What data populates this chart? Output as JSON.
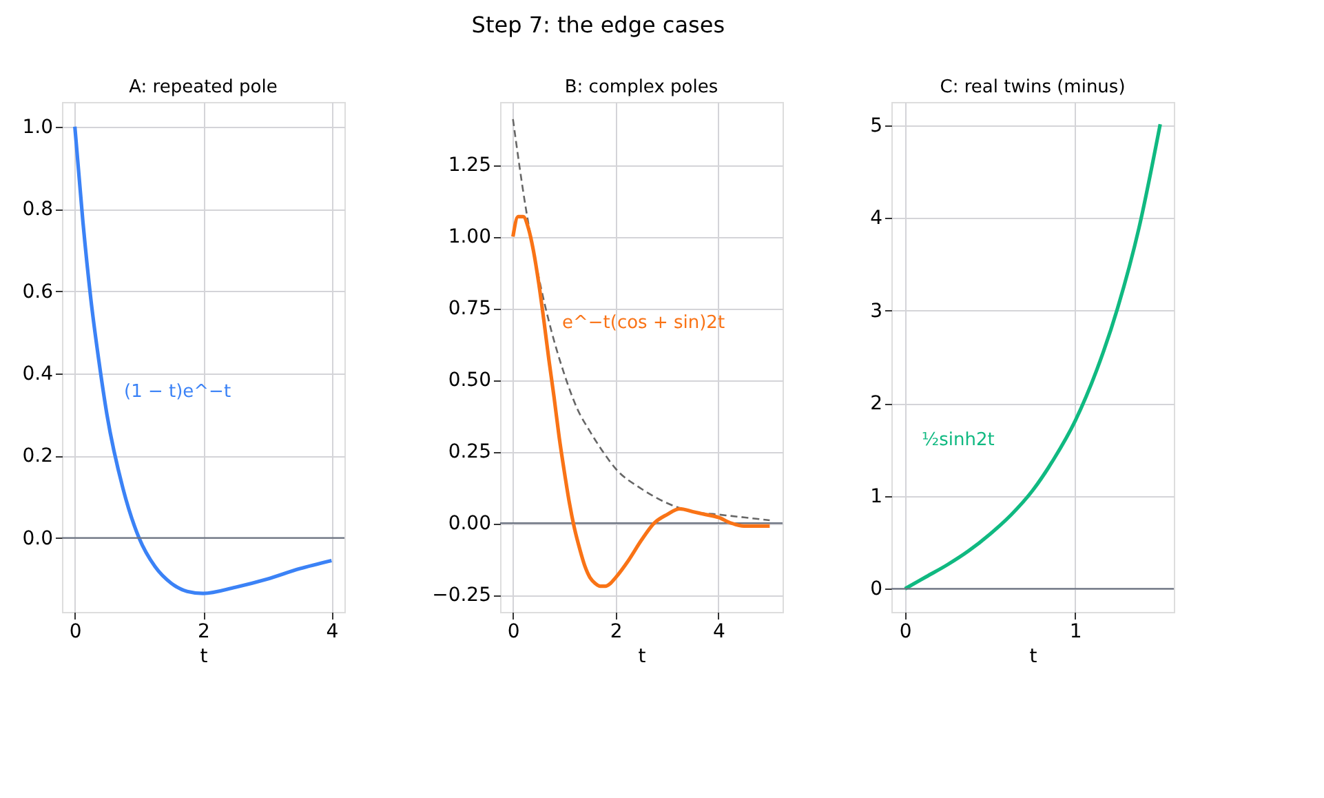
{
  "chart_data": [
    {
      "type": "line",
      "title": "A: repeated pole",
      "xlabel": "t",
      "annotations": [
        "Step 7: the edge cases",
        "(1 − t)e^−t"
      ],
      "xlim": [
        -0.2,
        4.2
      ],
      "xticks": [
        0,
        2,
        4
      ],
      "ylim": [
        -0.18,
        1.06
      ],
      "yticks": [
        {
          "value": 0,
          "label": "0.0"
        },
        {
          "value": 0.2,
          "label": "0.2"
        },
        {
          "value": 0.4,
          "label": "0.4"
        },
        {
          "value": 0.6,
          "label": "0.6"
        },
        {
          "value": 0.8,
          "label": "0.8"
        },
        {
          "value": 1,
          "label": "1.0"
        }
      ],
      "grid": true,
      "ref_lines": [
        {
          "axis": "y",
          "value": 0,
          "color": "#6b7280"
        }
      ],
      "series": [
        {
          "color": "#3b82f6",
          "x": [
            0,
            0.125,
            0.25,
            0.375,
            0.5,
            0.75,
            1,
            1.25,
            1.5,
            1.75,
            2,
            2.5,
            3,
            3.5,
            4
          ],
          "values": [
            1,
            0.77,
            0.58,
            0.43,
            0.3,
            0.12,
            0,
            -0.07,
            -0.11,
            -0.13,
            -0.135,
            -0.12,
            -0.1,
            -0.075,
            -0.055
          ]
        }
      ]
    },
    {
      "type": "line",
      "title": "B: complex poles",
      "xlabel": "t",
      "annotations": [
        "e^−t(cos + sin)2t"
      ],
      "xlim": [
        -0.25,
        5.25
      ],
      "xticks": [
        0,
        2,
        4
      ],
      "ylim": [
        -0.31,
        1.47
      ],
      "yticks": [
        {
          "value": -0.25,
          "label": "−0.25"
        },
        {
          "value": 0,
          "label": "0.00"
        },
        {
          "value": 0.25,
          "label": "0.25"
        },
        {
          "value": 0.5,
          "label": "0.50"
        },
        {
          "value": 0.75,
          "label": "0.75"
        },
        {
          "value": 1,
          "label": "1.00"
        },
        {
          "value": 1.25,
          "label": "1.25"
        }
      ],
      "grid": true,
      "ref_lines": [
        {
          "axis": "y",
          "value": 0,
          "color": "#6b7280"
        }
      ],
      "series": [
        {
          "color": "#666666",
          "line_style": "dashed",
          "x": [
            0,
            0.25,
            0.5,
            0.75,
            1,
            1.25,
            1.5,
            1.75,
            2,
            2.5,
            3,
            3.5,
            4,
            4.5,
            5
          ],
          "values": [
            1.41,
            1.1,
            0.86,
            0.67,
            0.52,
            0.4,
            0.32,
            0.25,
            0.19,
            0.12,
            0.07,
            0.04,
            0.03,
            0.02,
            0.01
          ]
        },
        {
          "color": "#f97316",
          "x": [
            0,
            0.1,
            0.2,
            0.3,
            0.4,
            0.5,
            0.6,
            0.7,
            0.8,
            0.9,
            1.0,
            1.1,
            1.2,
            1.3,
            1.4,
            1.5,
            1.6,
            1.7,
            1.8,
            1.9,
            2.0,
            2.25,
            2.5,
            2.75,
            3.0,
            3.25,
            3.5,
            3.75,
            4.0,
            4.25,
            4.5,
            4.75,
            5.0
          ],
          "values": [
            1,
            1.07,
            1.07,
            1.03,
            0.95,
            0.84,
            0.71,
            0.57,
            0.44,
            0.3,
            0.18,
            0.07,
            -0.02,
            -0.09,
            -0.15,
            -0.19,
            -0.21,
            -0.22,
            -0.22,
            -0.21,
            -0.19,
            -0.13,
            -0.06,
            0,
            0.03,
            0.05,
            0.04,
            0.03,
            0.02,
            0,
            -0.01,
            -0.01,
            -0.01
          ]
        }
      ]
    },
    {
      "type": "line",
      "title": "C: real twins (minus)",
      "xlabel": "t",
      "annotations": [
        "½sinh2t"
      ],
      "xlim": [
        -0.08,
        1.58
      ],
      "xticks": [
        0,
        1
      ],
      "ylim": [
        -0.25,
        5.25
      ],
      "yticks": [
        0,
        1,
        2,
        3,
        4,
        5
      ],
      "grid": true,
      "ref_lines": [
        {
          "axis": "y",
          "value": 0,
          "color": "#6b7280"
        }
      ],
      "series": [
        {
          "color": "#10b981",
          "x": [
            0,
            0.125,
            0.25,
            0.375,
            0.5,
            0.625,
            0.75,
            0.875,
            1,
            1.125,
            1.25,
            1.375,
            1.5
          ],
          "values": [
            0,
            0.13,
            0.26,
            0.41,
            0.59,
            0.8,
            1.06,
            1.4,
            1.81,
            2.35,
            3.03,
            3.89,
            5.01
          ]
        }
      ]
    }
  ]
}
